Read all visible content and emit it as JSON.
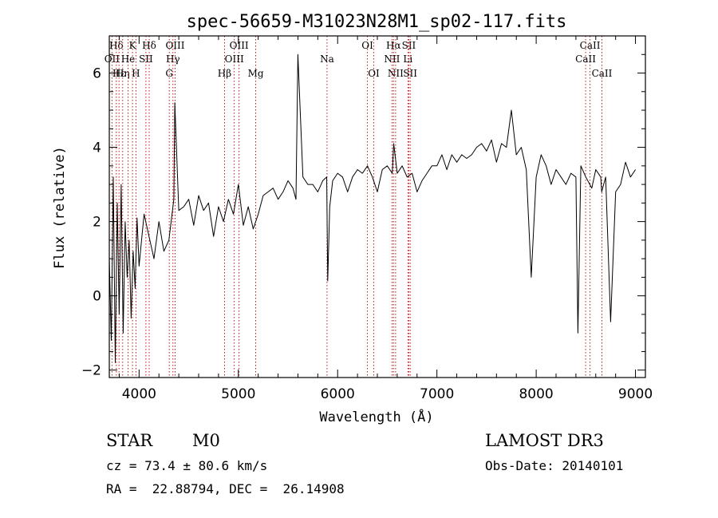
{
  "chart_data": {
    "type": "line",
    "title": "spec-56659-M31023N28M1_sp02-117.fits",
    "xlabel": "Wavelength (Å)",
    "ylabel": "Flux (relative)",
    "xlim": [
      3700,
      9100
    ],
    "ylim": [
      -2.2,
      7.0
    ],
    "xticks": [
      4000,
      5000,
      6000,
      7000,
      8000,
      9000
    ],
    "yticks": [
      -2,
      0,
      2,
      4,
      6
    ],
    "series": [
      {
        "name": "flux",
        "x": [
          3700,
          3720,
          3740,
          3760,
          3780,
          3800,
          3820,
          3840,
          3860,
          3880,
          3900,
          3920,
          3940,
          3960,
          3980,
          4000,
          4050,
          4100,
          4150,
          4200,
          4250,
          4300,
          4350,
          4360,
          4400,
          4450,
          4500,
          4550,
          4600,
          4650,
          4700,
          4750,
          4800,
          4850,
          4900,
          4950,
          5000,
          5050,
          5100,
          5150,
          5200,
          5250,
          5300,
          5350,
          5400,
          5450,
          5500,
          5550,
          5580,
          5600,
          5650,
          5700,
          5750,
          5800,
          5850,
          5890,
          5900,
          5920,
          5950,
          6000,
          6050,
          6100,
          6150,
          6200,
          6250,
          6300,
          6350,
          6400,
          6450,
          6500,
          6550,
          6565,
          6600,
          6650,
          6700,
          6750,
          6800,
          6850,
          6900,
          6950,
          7000,
          7050,
          7100,
          7150,
          7200,
          7250,
          7300,
          7350,
          7400,
          7450,
          7500,
          7550,
          7600,
          7650,
          7700,
          7750,
          7800,
          7850,
          7900,
          7950,
          8000,
          8050,
          8100,
          8150,
          8200,
          8250,
          8300,
          8350,
          8400,
          8420,
          8450,
          8500,
          8540,
          8560,
          8600,
          8650,
          8660,
          8700,
          8750,
          8800,
          8850,
          8900,
          8950,
          9000
        ],
        "values": [
          1.0,
          -1.2,
          3.2,
          -1.8,
          2.5,
          -0.5,
          3.0,
          -1.0,
          2.0,
          0.5,
          1.5,
          -0.6,
          1.2,
          0.2,
          2.1,
          0.8,
          2.2,
          1.6,
          1.0,
          2.0,
          1.2,
          1.5,
          2.6,
          5.2,
          2.3,
          2.4,
          2.6,
          1.9,
          2.7,
          2.3,
          2.5,
          1.6,
          2.4,
          2.0,
          2.6,
          2.2,
          3.0,
          1.9,
          2.4,
          1.8,
          2.2,
          2.7,
          2.8,
          2.9,
          2.6,
          2.8,
          3.1,
          2.9,
          2.6,
          6.5,
          3.2,
          3.0,
          3.0,
          2.8,
          3.1,
          3.2,
          0.4,
          2.4,
          3.1,
          3.3,
          3.2,
          2.8,
          3.2,
          3.4,
          3.3,
          3.5,
          3.2,
          2.8,
          3.4,
          3.5,
          3.3,
          4.1,
          3.3,
          3.5,
          3.2,
          3.3,
          2.8,
          3.1,
          3.3,
          3.5,
          3.5,
          3.8,
          3.4,
          3.8,
          3.6,
          3.8,
          3.7,
          3.8,
          4.0,
          4.1,
          3.9,
          4.2,
          3.6,
          4.1,
          4.0,
          5.0,
          3.8,
          4.0,
          3.4,
          0.5,
          3.2,
          3.8,
          3.5,
          3.0,
          3.4,
          3.2,
          3.0,
          3.3,
          3.2,
          -1.0,
          3.5,
          3.2,
          3.0,
          2.9,
          3.4,
          3.2,
          2.8,
          3.2,
          -0.7,
          2.8,
          3.0,
          3.6,
          3.2,
          3.4
        ]
      }
    ],
    "lines": [
      {
        "label": "Hδ",
        "wl": 3771,
        "row": 0
      },
      {
        "label": "OII",
        "wl": 3727,
        "row": 1
      },
      {
        "label": "Hε",
        "wl": 3798,
        "row": 2
      },
      {
        "label": "Hη",
        "wl": 3835,
        "row": 2
      },
      {
        "label": "K",
        "wl": 3934,
        "row": 0
      },
      {
        "label": "He",
        "wl": 3889,
        "row": 1
      },
      {
        "label": "H",
        "wl": 3968,
        "row": 2
      },
      {
        "label": "SII",
        "wl": 4069,
        "row": 1
      },
      {
        "label": "Hδ",
        "wl": 4102,
        "row": 0
      },
      {
        "label": "OIII",
        "wl": 4363,
        "row": 0
      },
      {
        "label": "Hγ",
        "wl": 4341,
        "row": 1
      },
      {
        "label": "G",
        "wl": 4304,
        "row": 2
      },
      {
        "label": "OIII",
        "wl": 5007,
        "row": 0
      },
      {
        "label": "OIII",
        "wl": 4959,
        "row": 1
      },
      {
        "label": "Hβ",
        "wl": 4861,
        "row": 2
      },
      {
        "label": "Mg",
        "wl": 5175,
        "row": 2
      },
      {
        "label": "Na",
        "wl": 5893,
        "row": 1
      },
      {
        "label": "OI",
        "wl": 6300,
        "row": 0
      },
      {
        "label": "OI",
        "wl": 6364,
        "row": 2
      },
      {
        "label": "Hα",
        "wl": 6563,
        "row": 0
      },
      {
        "label": "NII",
        "wl": 6548,
        "row": 1
      },
      {
        "label": "NII",
        "wl": 6584,
        "row": 2
      },
      {
        "label": "SII",
        "wl": 6717,
        "row": 0
      },
      {
        "label": "Li",
        "wl": 6708,
        "row": 1
      },
      {
        "label": "SII",
        "wl": 6731,
        "row": 2
      },
      {
        "label": "CaII",
        "wl": 8542,
        "row": 0
      },
      {
        "label": "CaII",
        "wl": 8498,
        "row": 1
      },
      {
        "label": "CaII",
        "wl": 8662,
        "row": 2
      }
    ]
  },
  "info": {
    "class": "STAR",
    "subclass": "M0",
    "survey": "LAMOST DR3",
    "cz": "cz = 73.4 ± 80.6 km/s",
    "obsdate": "Obs-Date: 20140101",
    "radec": "RA =  22.88794, DEC =  26.14908"
  },
  "colors": {
    "line_marker": "#c00000",
    "spectrum": "#000000"
  }
}
